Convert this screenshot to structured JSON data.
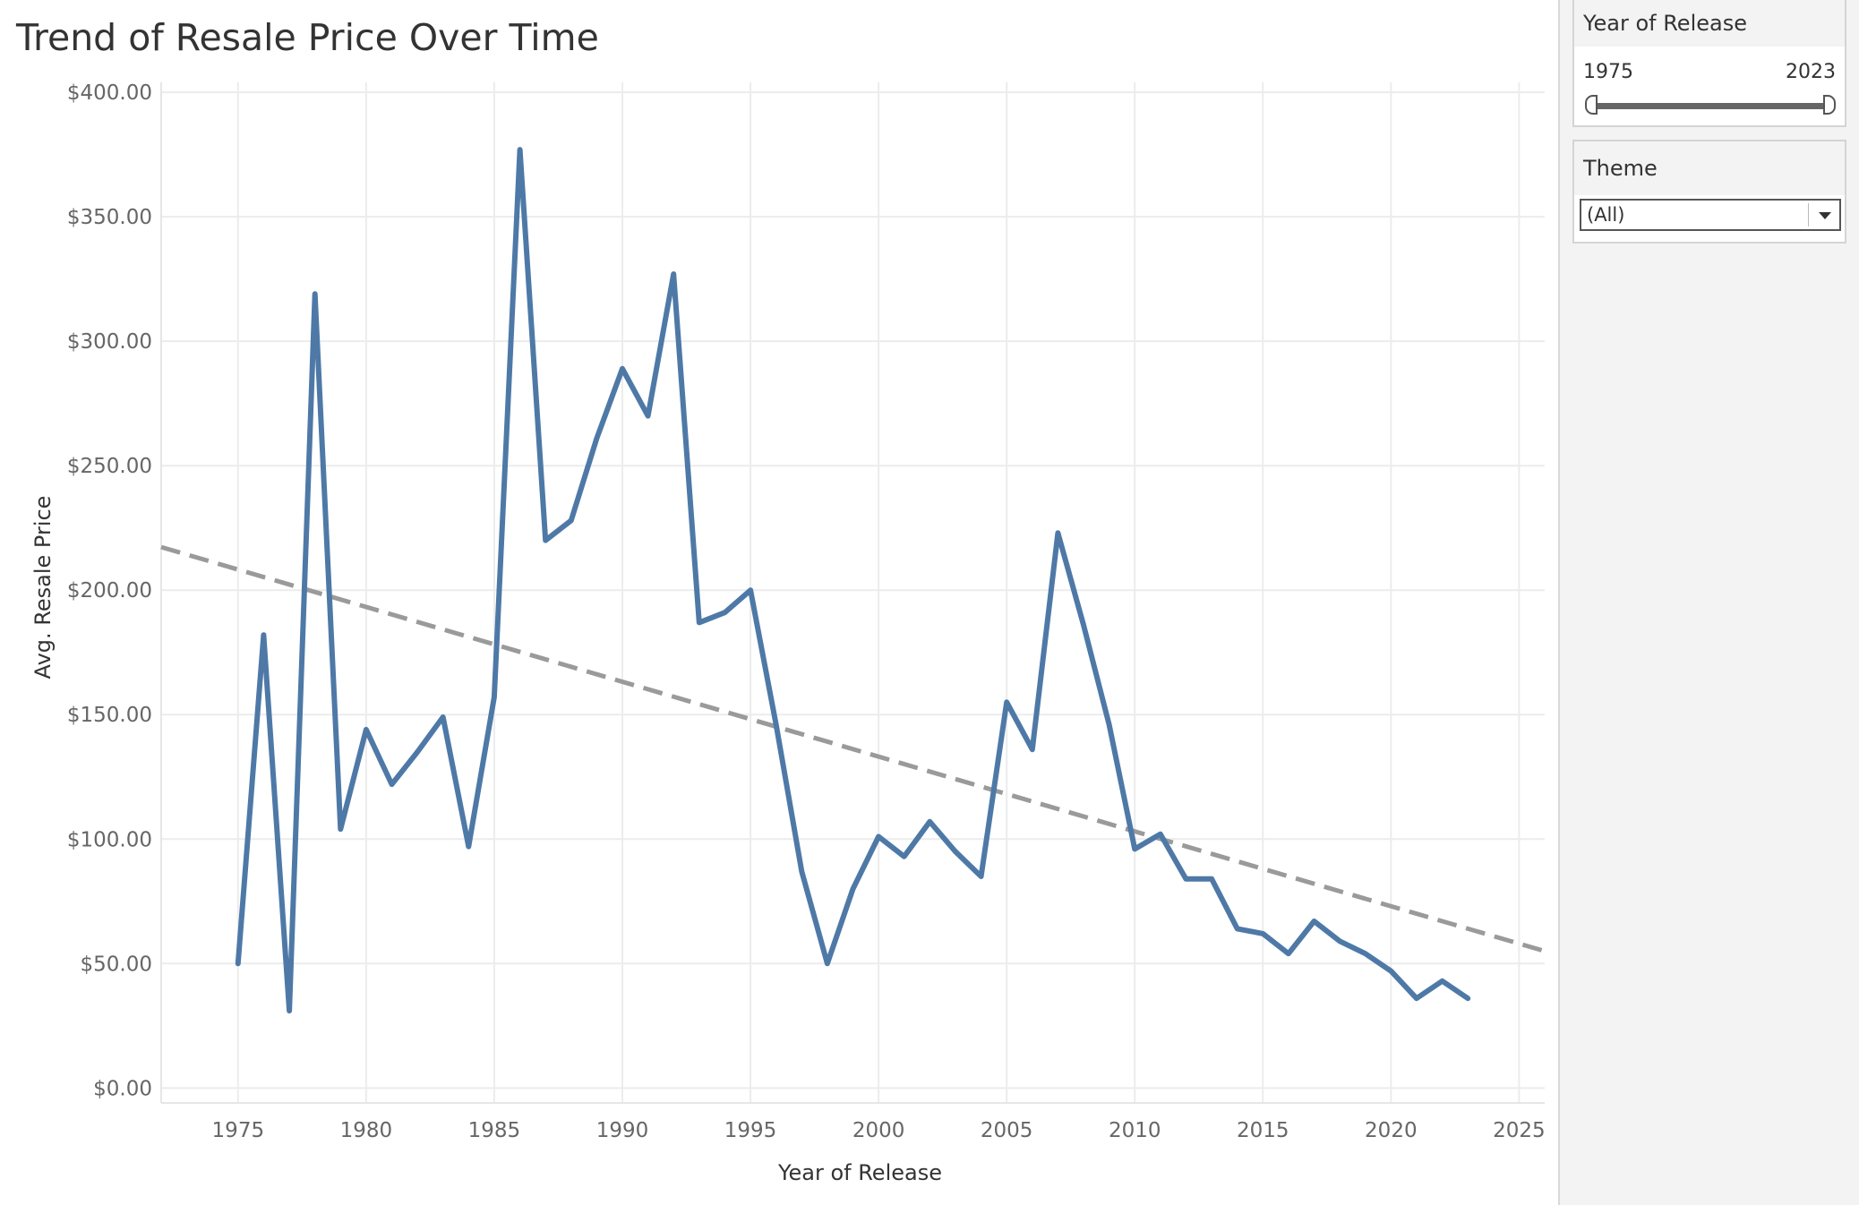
{
  "page": {
    "title": "Trend of Resale Price Over Time"
  },
  "filters": {
    "year_of_release": {
      "label": "Year of Release",
      "min_value": "1975",
      "max_value": "2023"
    },
    "theme": {
      "label": "Theme",
      "selected": "(All)"
    }
  },
  "colors": {
    "series_line": "#4e79a7",
    "trend_line": "#9a9a9a",
    "grid": "#ececec"
  },
  "chart_data": {
    "type": "line",
    "title": "Trend of Resale Price Over Time",
    "xlabel": "Year of Release",
    "ylabel": "Avg. Resale Price",
    "xlim": [
      1972,
      2026
    ],
    "ylim": [
      -6,
      404
    ],
    "x_ticks": [
      1975,
      1980,
      1985,
      1990,
      1995,
      2000,
      2005,
      2010,
      2015,
      2020,
      2025
    ],
    "y_ticks": [
      0,
      50,
      100,
      150,
      200,
      250,
      300,
      350,
      400
    ],
    "y_tick_labels": [
      "$0.00",
      "$50.00",
      "$100.00",
      "$150.00",
      "$200.00",
      "$250.00",
      "$300.00",
      "$350.00",
      "$400.00"
    ],
    "grid": true,
    "series": [
      {
        "x": [
          1975,
          1976,
          1977,
          1978,
          1979,
          1980,
          1981,
          1982,
          1983,
          1984,
          1985,
          1986,
          1987,
          1988,
          1989,
          1990,
          1991,
          1992,
          1993,
          1994,
          1995,
          1996,
          1997,
          1998,
          1999,
          2000,
          2001,
          2002,
          2003,
          2004,
          2005,
          2006,
          2007,
          2008,
          2009,
          2010,
          2011,
          2012,
          2013,
          2014,
          2015,
          2016,
          2017,
          2018,
          2019,
          2020,
          2021,
          2022,
          2023
        ],
        "values": [
          50,
          182,
          31,
          319,
          104,
          144,
          122,
          135,
          149,
          97,
          157,
          377,
          220,
          228,
          261,
          289,
          270,
          327,
          187,
          191,
          200,
          146,
          87,
          50,
          80,
          101,
          93,
          107,
          95,
          85,
          155,
          136,
          223,
          186,
          146,
          96,
          102,
          84,
          84,
          64,
          62,
          54,
          67,
          59,
          54,
          47,
          36,
          43,
          36
        ]
      }
    ],
    "trend_line": {
      "style": "dashed",
      "x": [
        1972,
        2026
      ],
      "values": [
        217.3,
        55.0
      ]
    }
  }
}
